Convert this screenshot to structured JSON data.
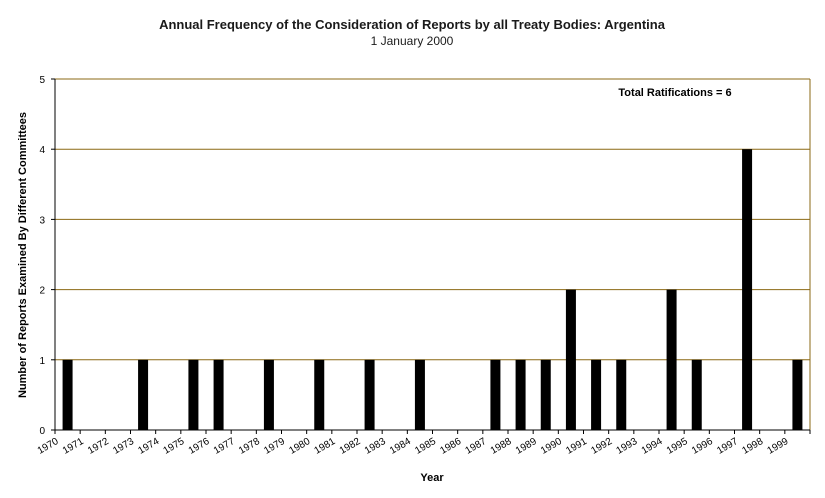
{
  "chart_data": {
    "type": "bar",
    "title": "Annual Frequency of the Consideration of Reports by all Treaty Bodies: Argentina",
    "subtitle": "1 January 2000",
    "xlabel": "Year",
    "ylabel": "Number of Reports Examined By Different Committees",
    "annotation": "Total Ratifications = 6",
    "ylim": [
      0,
      5
    ],
    "yticks": [
      0,
      1,
      2,
      3,
      4,
      5
    ],
    "grid": true,
    "categories": [
      "1970",
      "1971",
      "1972",
      "1973",
      "1974",
      "1975",
      "1976",
      "1977",
      "1978",
      "1979",
      "1980",
      "1981",
      "1982",
      "1983",
      "1984",
      "1985",
      "1986",
      "1987",
      "1988",
      "1989",
      "1990",
      "1991",
      "1992",
      "1993",
      "1994",
      "1995",
      "1996",
      "1997",
      "1998",
      "1999"
    ],
    "values": [
      1,
      0,
      0,
      1,
      0,
      1,
      1,
      0,
      1,
      0,
      1,
      0,
      1,
      0,
      1,
      0,
      0,
      1,
      1,
      1,
      2,
      1,
      1,
      0,
      2,
      1,
      0,
      4,
      0,
      1
    ],
    "colors": {
      "bar": "#000000",
      "grid": "#8B6914",
      "axis": "#000000"
    }
  }
}
